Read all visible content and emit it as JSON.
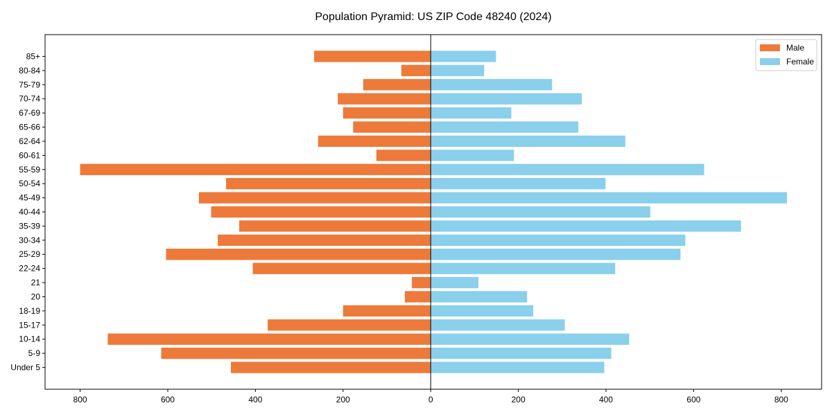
{
  "chart_data": {
    "type": "bar",
    "orientation": "horizontal",
    "title": "Population Pyramid: US ZIP Code 48240 (2024)",
    "xlabel": "",
    "ylabel": "",
    "xlim": [
      -880,
      892
    ],
    "xticks": [
      -800,
      -600,
      -400,
      -200,
      0,
      200,
      400,
      600,
      800
    ],
    "xtick_labels": [
      "800",
      "600",
      "400",
      "200",
      "0",
      "200",
      "400",
      "600",
      "800"
    ],
    "grid": false,
    "legend_position": "top-right",
    "categories": [
      "Under 5",
      "5-9",
      "10-14",
      "15-17",
      "18-19",
      "20",
      "21",
      "22-24",
      "25-29",
      "30-34",
      "35-39",
      "40-44",
      "45-49",
      "50-54",
      "55-59",
      "60-61",
      "62-64",
      "65-66",
      "67-69",
      "70-74",
      "75-79",
      "80-84",
      "85+"
    ],
    "series": [
      {
        "name": "Male",
        "color": "#ED7A3A",
        "values": [
          456,
          615,
          737,
          372,
          200,
          59,
          43,
          406,
          604,
          486,
          437,
          501,
          529,
          467,
          800,
          124,
          257,
          177,
          200,
          212,
          154,
          67,
          266
        ]
      },
      {
        "name": "Female",
        "color": "#8ACFEB",
        "values": [
          396,
          412,
          453,
          306,
          234,
          220,
          109,
          421,
          570,
          581,
          708,
          501,
          813,
          399,
          624,
          190,
          444,
          337,
          184,
          345,
          277,
          122,
          149
        ]
      }
    ]
  }
}
